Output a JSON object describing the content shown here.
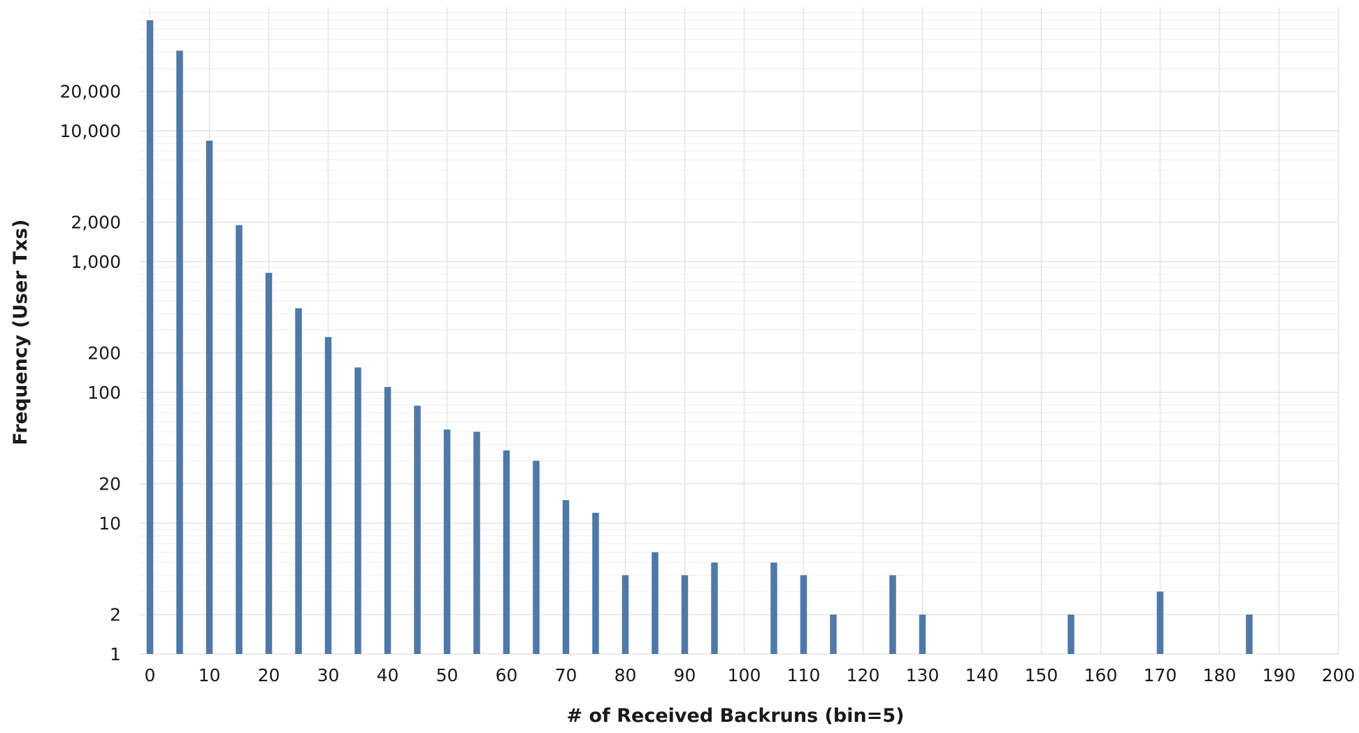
{
  "chart_data": {
    "type": "bar",
    "xlabel": "# of Received Backruns (bin=5)",
    "ylabel": "Frequency (User Txs)",
    "yscale": "log",
    "ylim": [
      1,
      70000
    ],
    "xlim": [
      -2,
      200
    ],
    "grid": true,
    "bar_color": "#4e79a7",
    "x_ticks": [
      0,
      10,
      20,
      30,
      40,
      50,
      60,
      70,
      80,
      90,
      100,
      110,
      120,
      130,
      140,
      150,
      160,
      170,
      180,
      190,
      200
    ],
    "y_ticks": [
      {
        "value": 1,
        "label": "1"
      },
      {
        "value": 2,
        "label": "2"
      },
      {
        "value": 10,
        "label": "10"
      },
      {
        "value": 20,
        "label": "20"
      },
      {
        "value": 100,
        "label": "100"
      },
      {
        "value": 200,
        "label": "200"
      },
      {
        "value": 1000,
        "label": "1,000"
      },
      {
        "value": 2000,
        "label": "2,000"
      },
      {
        "value": 10000,
        "label": "10,000"
      },
      {
        "value": 20000,
        "label": "20,000"
      }
    ],
    "x": [
      0,
      5,
      10,
      15,
      20,
      25,
      30,
      35,
      40,
      45,
      50,
      55,
      60,
      65,
      70,
      75,
      80,
      85,
      90,
      95,
      105,
      110,
      115,
      125,
      130,
      155,
      170,
      185
    ],
    "values": [
      70000,
      41000,
      8400,
      1900,
      820,
      440,
      265,
      155,
      110,
      79,
      52,
      50,
      36,
      30,
      15,
      12,
      4,
      6,
      4,
      5,
      5,
      4,
      2,
      4,
      2,
      2,
      3,
      2
    ]
  }
}
